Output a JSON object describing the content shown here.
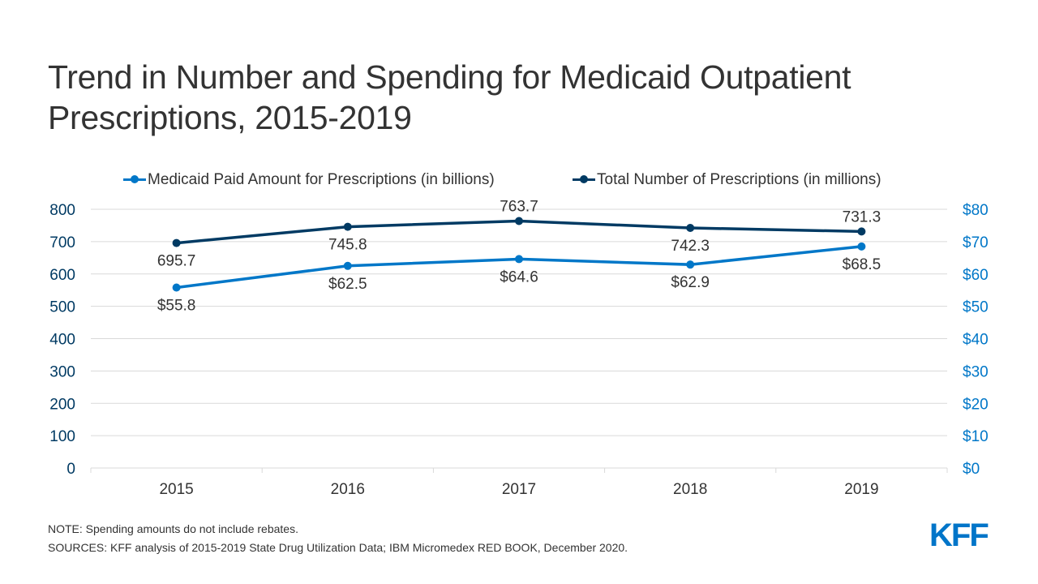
{
  "title": "Trend in Number and Spending for Medicaid Outpatient Prescriptions, 2015-2019",
  "colors": {
    "paid": "#0077c8",
    "total": "#003a63",
    "left_axis_text": "#003a63",
    "right_axis_text": "#0077c8",
    "grid": "#d9d9d9",
    "label_text": "#333333",
    "logo": "#0075c9"
  },
  "legend": [
    {
      "label": "Medicaid Paid Amount for Prescriptions (in billions)",
      "series": "paid"
    },
    {
      "label": "Total Number of Prescriptions (in millions)",
      "series": "total"
    }
  ],
  "chart_data": {
    "type": "line",
    "title": "Trend in Number and Spending for Medicaid Outpatient Prescriptions, 2015-2019",
    "x": [
      "2015",
      "2016",
      "2017",
      "2018",
      "2019"
    ],
    "series": [
      {
        "name": "Medicaid Paid Amount for Prescriptions (in billions)",
        "key": "paid",
        "axis": "right",
        "values": [
          55.8,
          62.5,
          64.6,
          62.9,
          68.5
        ],
        "labels": [
          "$55.8",
          "$62.5",
          "$64.6",
          "$62.9",
          "$68.5"
        ],
        "label_position": "below"
      },
      {
        "name": "Total Number of Prescriptions (in millions)",
        "key": "total",
        "axis": "left",
        "values": [
          695.7,
          745.8,
          763.7,
          742.3,
          731.3
        ],
        "labels": [
          "695.7",
          "745.8",
          "763.7",
          "742.3",
          "731.3"
        ],
        "label_position": [
          "below",
          "below",
          "above",
          "below",
          "above"
        ]
      }
    ],
    "left_axis": {
      "ylim": [
        0,
        800
      ],
      "ticks": [
        "0",
        "100",
        "200",
        "300",
        "400",
        "500",
        "600",
        "700",
        "800"
      ]
    },
    "right_axis": {
      "ylim": [
        0,
        80
      ],
      "ticks": [
        "$0",
        "$10",
        "$20",
        "$30",
        "$40",
        "$50",
        "$60",
        "$70",
        "$80"
      ]
    },
    "grid": true,
    "legend_position": "top"
  },
  "notes": {
    "note": "NOTE: Spending amounts do not include rebates.",
    "sources": "SOURCES: KFF analysis of 2015-2019 State Drug Utilization Data; IBM Micromedex RED BOOK, December 2020."
  },
  "logo": "KFF"
}
